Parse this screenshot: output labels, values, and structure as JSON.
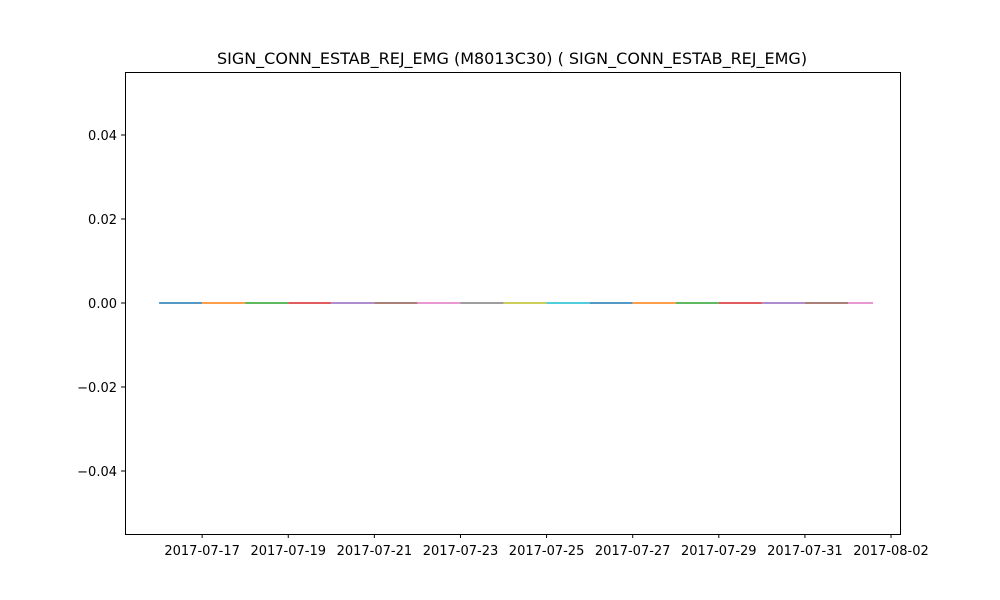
{
  "chart_data": {
    "type": "line",
    "title": "SIGN_CONN_ESTAB_REJ_EMG (M8013C30) ( SIGN_CONN_ESTAB_REJ_EMG)",
    "xlabel": "",
    "ylabel": "",
    "x_type": "date",
    "xlim": [
      "2017-07-15T05:00",
      "2017-08-02T05:00"
    ],
    "ylim": [
      -0.055,
      0.055
    ],
    "grid": false,
    "xticks": [
      "2017-07-17",
      "2017-07-19",
      "2017-07-21",
      "2017-07-23",
      "2017-07-25",
      "2017-07-27",
      "2017-07-29",
      "2017-07-31",
      "2017-08-02"
    ],
    "yticks": [
      0.04,
      0.02,
      0.0,
      -0.02,
      -0.04
    ],
    "ytick_labels": [
      "0.04",
      "0.02",
      "0.00",
      "−0.02",
      "−0.04"
    ],
    "segments": [
      {
        "x": [
          "2017-07-16",
          "2017-07-17"
        ],
        "y": [
          0,
          0
        ],
        "color": "#1f77b4"
      },
      {
        "x": [
          "2017-07-17",
          "2017-07-18"
        ],
        "y": [
          0,
          0
        ],
        "color": "#ff7f0e"
      },
      {
        "x": [
          "2017-07-18",
          "2017-07-19"
        ],
        "y": [
          0,
          0
        ],
        "color": "#2ca02c"
      },
      {
        "x": [
          "2017-07-19",
          "2017-07-20"
        ],
        "y": [
          0,
          0
        ],
        "color": "#d62728"
      },
      {
        "x": [
          "2017-07-20",
          "2017-07-21"
        ],
        "y": [
          0,
          0
        ],
        "color": "#9467bd"
      },
      {
        "x": [
          "2017-07-21",
          "2017-07-22"
        ],
        "y": [
          0,
          0
        ],
        "color": "#8c564b"
      },
      {
        "x": [
          "2017-07-22",
          "2017-07-23"
        ],
        "y": [
          0,
          0
        ],
        "color": "#e377c2"
      },
      {
        "x": [
          "2017-07-23",
          "2017-07-24"
        ],
        "y": [
          0,
          0
        ],
        "color": "#7f7f7f"
      },
      {
        "x": [
          "2017-07-24",
          "2017-07-25"
        ],
        "y": [
          0,
          0
        ],
        "color": "#bcbd22"
      },
      {
        "x": [
          "2017-07-25",
          "2017-07-26"
        ],
        "y": [
          0,
          0
        ],
        "color": "#17becf"
      },
      {
        "x": [
          "2017-07-26",
          "2017-07-27"
        ],
        "y": [
          0,
          0
        ],
        "color": "#1f77b4"
      },
      {
        "x": [
          "2017-07-27",
          "2017-07-28"
        ],
        "y": [
          0,
          0
        ],
        "color": "#ff7f0e"
      },
      {
        "x": [
          "2017-07-28",
          "2017-07-29"
        ],
        "y": [
          0,
          0
        ],
        "color": "#2ca02c"
      },
      {
        "x": [
          "2017-07-29",
          "2017-07-30"
        ],
        "y": [
          0,
          0
        ],
        "color": "#d62728"
      },
      {
        "x": [
          "2017-07-30",
          "2017-07-31"
        ],
        "y": [
          0,
          0
        ],
        "color": "#9467bd"
      },
      {
        "x": [
          "2017-07-31",
          "2017-08-01"
        ],
        "y": [
          0,
          0
        ],
        "color": "#8c564b"
      },
      {
        "x": [
          "2017-08-01",
          "2017-08-01T14:00"
        ],
        "y": [
          0,
          0
        ],
        "color": "#e377c2"
      }
    ]
  }
}
